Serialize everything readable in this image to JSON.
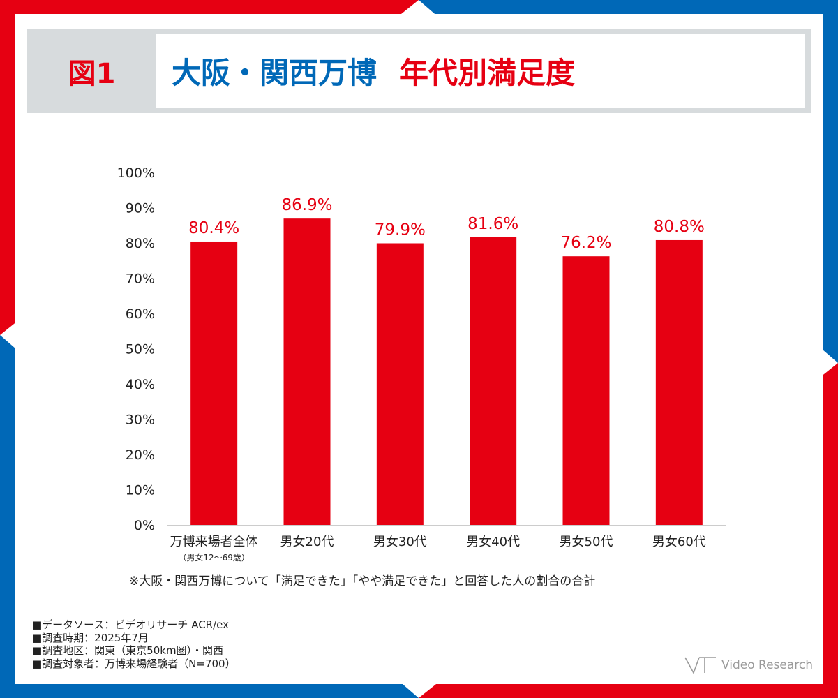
{
  "header": {
    "figure_label": "図1",
    "title_main": "大阪・関西万博",
    "title_sub": "年代別満足度"
  },
  "colors": {
    "red": "#e60012",
    "blue": "#0068b7",
    "gray": "#d7dbdd"
  },
  "chart_data": {
    "type": "bar",
    "title": "大阪・関西万博　年代別満足度",
    "categories": [
      "万博来場者全体",
      "男女20代",
      "男女30代",
      "男女40代",
      "男女50代",
      "男女60代"
    ],
    "category_sublabels": [
      "（男女12～69歳）",
      "",
      "",
      "",
      "",
      ""
    ],
    "values": [
      80.4,
      86.9,
      79.9,
      81.6,
      76.2,
      80.8
    ],
    "value_labels": [
      "80.4%",
      "86.9%",
      "79.9%",
      "81.6%",
      "76.2%",
      "80.8%"
    ],
    "y_ticks": [
      "0%",
      "10%",
      "20%",
      "30%",
      "40%",
      "50%",
      "60%",
      "70%",
      "80%",
      "90%",
      "100%"
    ],
    "ylim": [
      0,
      100
    ],
    "xlabel": "",
    "ylabel": "",
    "grid": false
  },
  "note": "※大阪・関西万博について「満足できた」「やや満足できた」と回答した人の割合の合計",
  "footer": {
    "lines": [
      "■データソース：ビデオリサーチ ACR/ex",
      "■調査時期：2025年7月",
      "■調査地区：関東（東京50km圏）・関西",
      "■調査対象者：万博来場経験者（N=700）"
    ]
  },
  "logo": {
    "text": "Video Research"
  }
}
